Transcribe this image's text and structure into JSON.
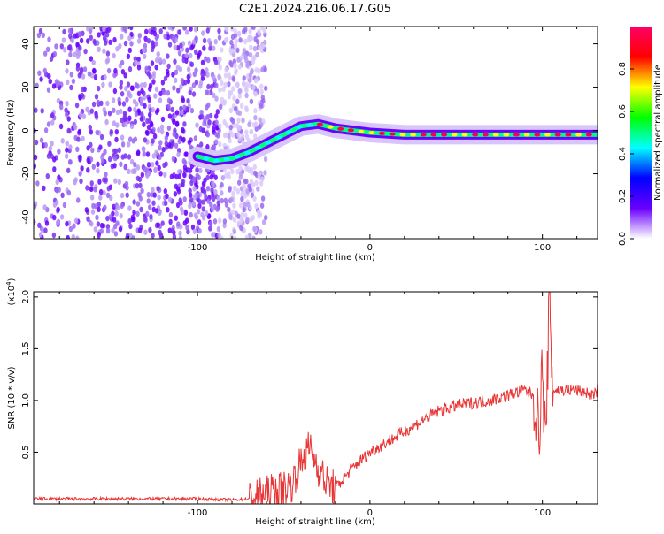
{
  "title": "C2E1.2024.216.06.17.G05",
  "colors": {
    "snr_line": "#e83535",
    "spectrogram_noise": "#7a2cf0",
    "colormap": [
      "#ffffff",
      "#6a00ff",
      "#0000ff",
      "#00ffff",
      "#00ff00",
      "#ffff00",
      "#ff0000",
      "#ff0066"
    ]
  },
  "chart_data": [
    {
      "type": "heatmap",
      "xlabel": "Height of straight line (km)",
      "ylabel": "Frequency (Hz)",
      "xlim": [
        -195,
        132
      ],
      "ylim": [
        -50,
        48
      ],
      "xticks": [
        -100,
        0,
        100
      ],
      "yticks": [
        -40,
        -20,
        0,
        20,
        40
      ],
      "colorbar": {
        "label": "Normalized spectral amplitude",
        "range": [
          0,
          1
        ],
        "ticks": [
          "0.0",
          "0.2",
          "0.4",
          "0.6",
          "0.8"
        ]
      },
      "ridge": {
        "x": [
          -100,
          -90,
          -80,
          -70,
          -60,
          -50,
          -40,
          -30,
          -20,
          -10,
          0,
          20,
          40,
          60,
          80,
          100,
          132
        ],
        "y": [
          -12,
          -14,
          -13,
          -10,
          -6,
          -2,
          2,
          3,
          1,
          0,
          -1,
          -2,
          -2,
          -2,
          -2,
          -2,
          -2
        ]
      },
      "noise_region_xmax": -68
    },
    {
      "type": "line",
      "xlabel": "Height of straight line (km)",
      "ylabel": "SNR (10 * v/v)",
      "y_scale_label": "(x10",
      "y_scale_exp": "4",
      "y_scale_close": ")",
      "xlim": [
        -195,
        132
      ],
      "ylim": [
        0,
        2.05
      ],
      "xticks": [
        -100,
        0,
        100
      ],
      "yticks": [
        0.5,
        1.0,
        1.5,
        2.0
      ],
      "ytick_labels": [
        "0.5",
        "1.0",
        "1.5",
        "2.0"
      ],
      "series": [
        {
          "x": [
            -195,
            -150,
            -100,
            -80,
            -70,
            -60,
            -50,
            -45,
            -40,
            -35,
            -30,
            -25,
            -20,
            -10,
            0,
            10,
            20,
            30,
            40,
            50,
            60,
            70,
            80,
            90,
            95,
            98,
            100,
            102,
            104,
            106,
            110,
            120,
            130,
            132
          ],
          "y": [
            0.05,
            0.05,
            0.05,
            0.04,
            0.05,
            0.1,
            0.15,
            0.2,
            0.4,
            0.55,
            0.35,
            0.2,
            0.15,
            0.35,
            0.5,
            0.6,
            0.7,
            0.8,
            0.9,
            0.95,
            0.98,
            1.0,
            1.05,
            1.1,
            1.05,
            0.7,
            1.3,
            0.5,
            2.05,
            1.1,
            1.1,
            1.1,
            1.05,
            1.1
          ]
        }
      ]
    }
  ]
}
